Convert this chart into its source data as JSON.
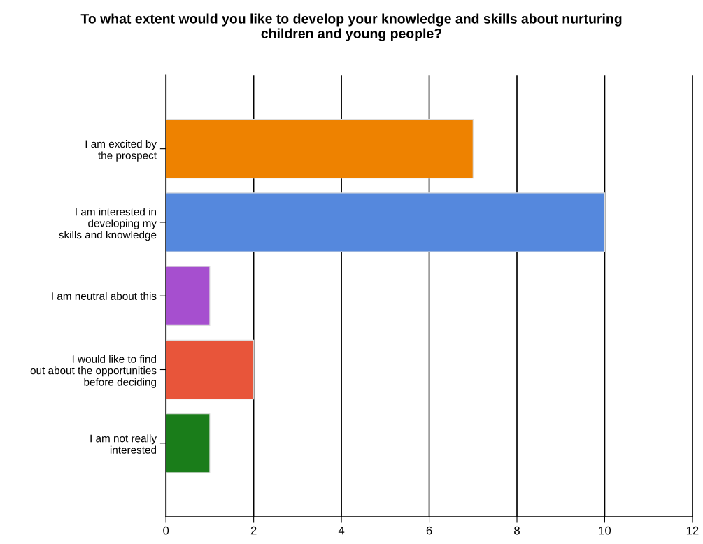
{
  "chart_data": {
    "type": "bar",
    "orientation": "horizontal",
    "title": "To what extent would you like to develop your knowledge and skills about nurturing\nchildren and young people?",
    "categories": [
      "I am excited by\nthe prospect",
      "I am interested in\ndeveloping my\nskills and knowledge",
      "I am neutral about this",
      "I would like to find\nout about the opportunities\nbefore deciding",
      "I am not really\ninterested"
    ],
    "values": [
      7,
      10,
      1,
      2,
      1
    ],
    "colors": [
      "#ee8200",
      "#5588dd",
      "#a64fcf",
      "#e8553a",
      "#1a7d1a"
    ],
    "xlim": [
      0,
      12
    ],
    "xticks": [
      0,
      2,
      4,
      6,
      8,
      10,
      12
    ],
    "grid": "x",
    "legend": false
  }
}
